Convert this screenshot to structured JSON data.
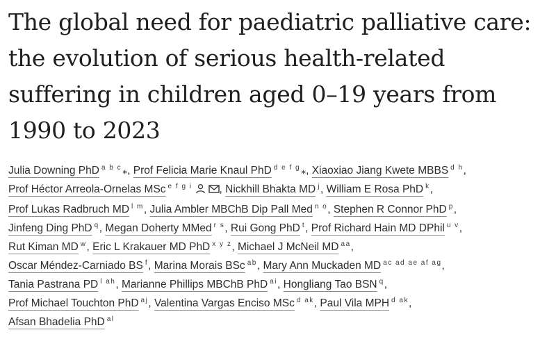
{
  "article": {
    "title": "The global need for paediatric palliative care: the evolution of serious health-related suffering in children aged 0–19 years from 1990 to 2023"
  },
  "authors": [
    {
      "name": "Julia Downing PhD",
      "aff": "a b c",
      "star": "⁎",
      "sep": ","
    },
    {
      "name": "Prof Felicia Marie Knaul PhD",
      "aff": "d e f g",
      "star": "⁎",
      "sep": ","
    },
    {
      "name": "Xiaoxiao Jiang Kwete MBBS",
      "aff": "d h",
      "sep": ","
    },
    {
      "name": "Prof Héctor Arreola-Ornelas MSc",
      "aff": "e f g i",
      "icons": [
        "person-icon",
        "envelope-icon"
      ],
      "sep": ","
    },
    {
      "name": "Nickhill Bhakta MD",
      "aff": "j",
      "sep": ","
    },
    {
      "name": "William E Rosa PhD",
      "aff": "k",
      "sep": ","
    },
    {
      "name": "Prof Lukas Radbruch MD",
      "aff": "l m",
      "sep": ","
    },
    {
      "name": "Julia Ambler MBChB Dip Pall Med",
      "aff": "n o",
      "sep": ","
    },
    {
      "name": "Stephen R Connor PhD",
      "aff": "p",
      "sep": ","
    },
    {
      "name": "Jinfeng Ding PhD",
      "aff": "q",
      "sep": ","
    },
    {
      "name": "Megan Doherty MMed",
      "aff": "r s",
      "sep": ","
    },
    {
      "name": "Rui Gong PhD",
      "aff": "t",
      "sep": ","
    },
    {
      "name": "Prof Richard Hain MD DPhil",
      "aff": "u v",
      "sep": ","
    },
    {
      "name": "Rut Kiman MD",
      "aff": "w",
      "sep": ","
    },
    {
      "name": "Eric L Krakauer MD PhD",
      "aff": "x y z",
      "sep": ","
    },
    {
      "name": "Michael J McNeil MD",
      "aff": "aa",
      "sep": ","
    },
    {
      "name": "Oscar Méndez-Carniado BS",
      "aff": "f",
      "sep": ","
    },
    {
      "name": "Marina Morais BSc",
      "aff": "ab",
      "sep": ","
    },
    {
      "name": "Mary Ann Muckaden MD",
      "aff": "ac ad ae af ag",
      "sep": ","
    },
    {
      "name": "Tania Pastrana PD",
      "aff": "l ah",
      "sep": ","
    },
    {
      "name": "Marianne Phillips MBChB PhD",
      "aff": "ai",
      "sep": ","
    },
    {
      "name": "Hongliang Tao BSN",
      "aff": "q",
      "sep": ","
    },
    {
      "name": "Prof Michael Touchton PhD",
      "aff": "aj",
      "sep": ","
    },
    {
      "name": "Valentina Vargas Enciso MSc",
      "aff": "d ak",
      "sep": ","
    },
    {
      "name": "Paul Vila MPH",
      "aff": "d ak",
      "sep": ","
    },
    {
      "name": "Afsan Bhadelia PhD",
      "aff": "al",
      "sep": ""
    }
  ]
}
